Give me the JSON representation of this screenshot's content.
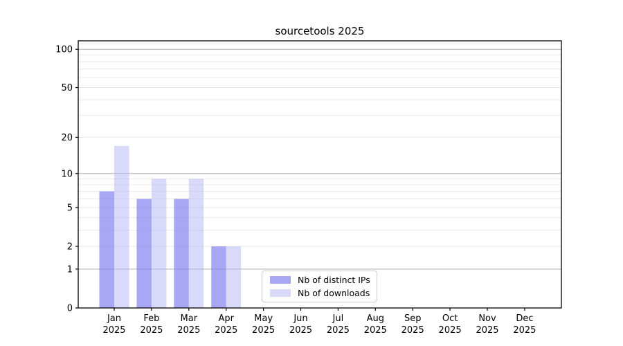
{
  "chart_data": {
    "type": "bar",
    "title": "sourcetools 2025",
    "x_month_labels": [
      "Jan",
      "Feb",
      "Mar",
      "Apr",
      "May",
      "Jun",
      "Jul",
      "Aug",
      "Sep",
      "Oct",
      "Nov",
      "Dec"
    ],
    "x_year_label": "2025",
    "series": [
      {
        "name": "Nb of distinct IPs",
        "color": "rgba(130,130,238,0.70)",
        "values": [
          7,
          6,
          6,
          2,
          0,
          0,
          0,
          0,
          0,
          0,
          0,
          0
        ]
      },
      {
        "name": "Nb of downloads",
        "color": "rgba(180,180,245,0.50)",
        "values": [
          17,
          9,
          9,
          2,
          0,
          0,
          0,
          0,
          0,
          0,
          0,
          0
        ]
      }
    ],
    "y_scale": "log1p",
    "ylim": [
      0,
      116
    ],
    "y_tick_labels": [
      "0",
      "1",
      "2",
      "5",
      "10",
      "20",
      "50",
      "100"
    ],
    "y_tick_values": [
      0,
      1,
      2,
      5,
      10,
      20,
      50,
      100
    ],
    "y_major_gridlines": [
      1,
      10,
      100
    ],
    "y_minor_gridlines": [
      2,
      3,
      4,
      5,
      6,
      7,
      8,
      9,
      20,
      30,
      40,
      50,
      60,
      70,
      80,
      90,
      110
    ],
    "grid": true,
    "legend_entries": [
      "Nb of distinct IPs",
      "Nb of downloads"
    ],
    "colors": {
      "major_grid": "#b0b0b0",
      "minor_grid": "#e8e8e8",
      "axis": "#000000",
      "tick_text": "#000000",
      "legend_border": "#cccccc",
      "background": "#ffffff"
    }
  }
}
